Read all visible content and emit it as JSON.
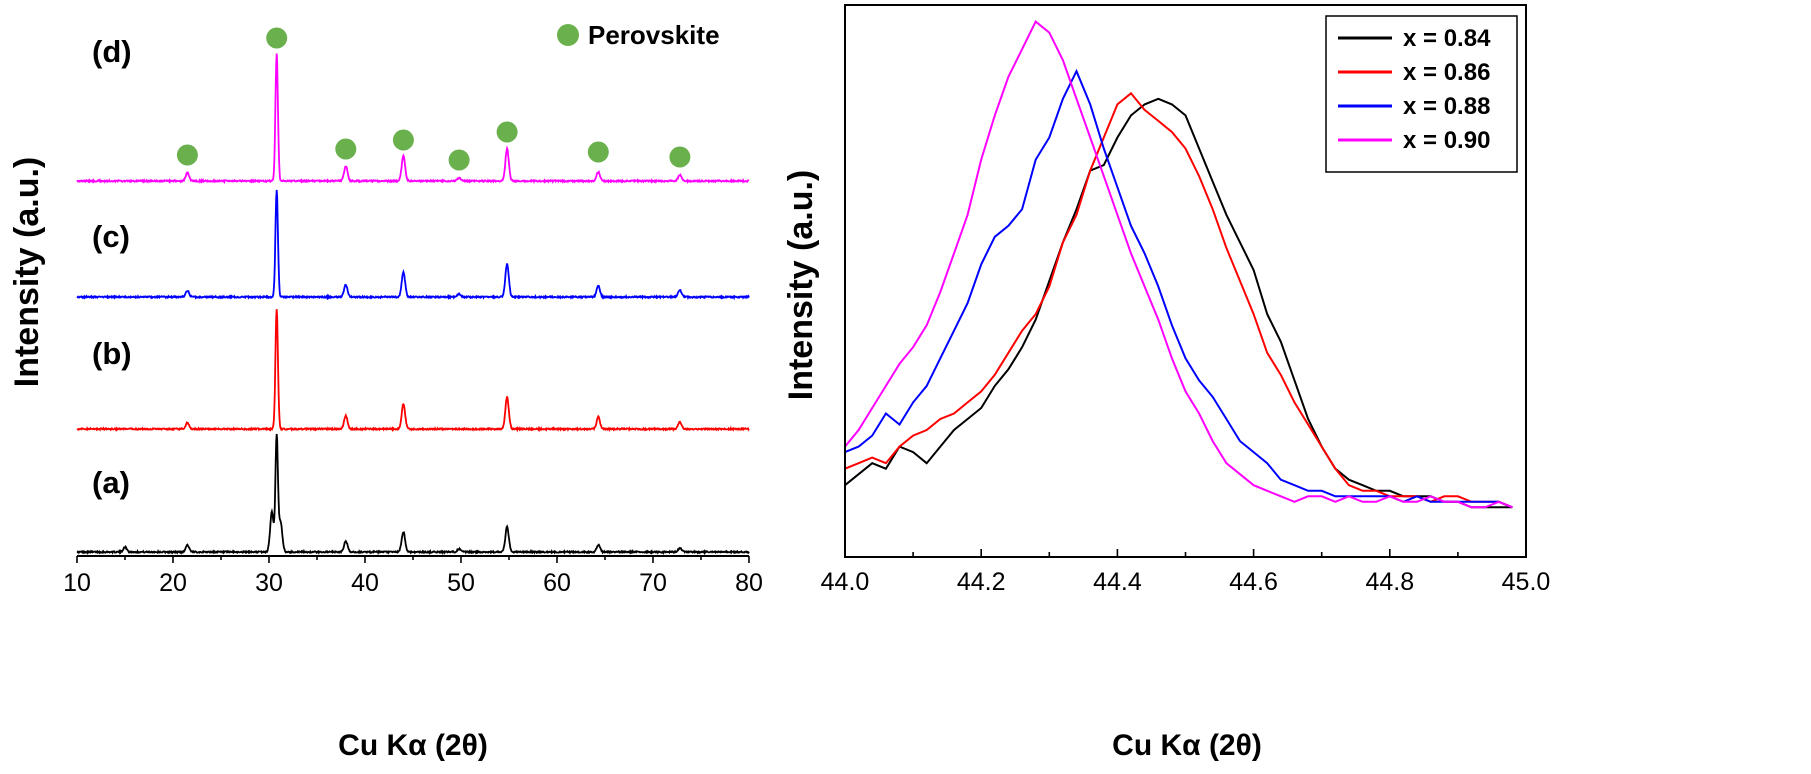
{
  "chart_data": [
    {
      "type": "line",
      "title": "",
      "xlabel": "Cu Kα (2θ)",
      "ylabel": "Intensity (a.u.)",
      "xlim": [
        10,
        80
      ],
      "xticks": [
        10,
        20,
        30,
        40,
        50,
        60,
        70,
        80
      ],
      "panel_labels": [
        "(a)",
        "(b)",
        "(c)",
        "(d)"
      ],
      "marker_legend": {
        "label": "Perovskite",
        "color": "#6ab04c"
      },
      "marker_peaks": [
        21.5,
        30.8,
        38.0,
        44.0,
        49.8,
        54.8,
        64.3,
        72.8
      ],
      "series": [
        {
          "name": "(a)",
          "color": "#000000",
          "peaks": [
            [
              15.0,
              5
            ],
            [
              21.5,
              7
            ],
            [
              30.3,
              40
            ],
            [
              30.8,
              115
            ],
            [
              31.2,
              30
            ],
            [
              38.0,
              11
            ],
            [
              44.0,
              20
            ],
            [
              49.8,
              3
            ],
            [
              54.8,
              25
            ],
            [
              64.3,
              7
            ],
            [
              72.8,
              4
            ]
          ]
        },
        {
          "name": "(b)",
          "color": "#ff0000",
          "peaks": [
            [
              21.5,
              6
            ],
            [
              30.8,
              120
            ],
            [
              38.0,
              13
            ],
            [
              44.0,
              25
            ],
            [
              54.8,
              32
            ],
            [
              64.3,
              12
            ],
            [
              72.8,
              7
            ]
          ]
        },
        {
          "name": "(c)",
          "color": "#0000ff",
          "peaks": [
            [
              21.5,
              6
            ],
            [
              30.8,
              107
            ],
            [
              38.0,
              12
            ],
            [
              44.0,
              25
            ],
            [
              49.8,
              3
            ],
            [
              54.8,
              33
            ],
            [
              64.3,
              11
            ],
            [
              72.8,
              7
            ]
          ]
        },
        {
          "name": "(d)",
          "color": "#ff00ff",
          "peaks": [
            [
              21.5,
              8
            ],
            [
              30.8,
              127
            ],
            [
              38.0,
              15
            ],
            [
              44.0,
              25
            ],
            [
              49.8,
              3
            ],
            [
              54.8,
              32
            ],
            [
              64.3,
              9
            ],
            [
              72.8,
              6
            ]
          ]
        }
      ]
    },
    {
      "type": "line",
      "title": "",
      "xlabel": "Cu Kα (2θ)",
      "ylabel": "Intensity (a.u.)",
      "xlim": [
        44.0,
        45.0
      ],
      "ylim": [
        0,
        1
      ],
      "xticks": [
        "44.0",
        "44.2",
        "44.4",
        "44.6",
        "44.8",
        "45.0"
      ],
      "series": [
        {
          "name": "x = 0.84",
          "color": "#000000",
          "x": [
            44.0,
            44.02,
            44.04,
            44.06,
            44.08,
            44.1,
            44.12,
            44.14,
            44.16,
            44.18,
            44.2,
            44.22,
            44.24,
            44.26,
            44.28,
            44.3,
            44.32,
            44.34,
            44.36,
            44.38,
            44.4,
            44.42,
            44.44,
            44.46,
            44.48,
            44.5,
            44.52,
            44.54,
            44.56,
            44.58,
            44.6,
            44.62,
            44.64,
            44.66,
            44.68,
            44.7,
            44.72,
            44.74,
            44.76,
            44.78,
            44.8,
            44.82,
            44.84,
            44.86,
            44.88,
            44.9,
            44.92,
            44.94,
            44.96,
            44.98
          ],
          "y": [
            0.13,
            0.15,
            0.17,
            0.16,
            0.2,
            0.19,
            0.17,
            0.2,
            0.23,
            0.25,
            0.27,
            0.31,
            0.34,
            0.38,
            0.43,
            0.5,
            0.57,
            0.63,
            0.7,
            0.71,
            0.76,
            0.8,
            0.82,
            0.83,
            0.82,
            0.8,
            0.74,
            0.68,
            0.62,
            0.57,
            0.52,
            0.44,
            0.39,
            0.32,
            0.25,
            0.2,
            0.16,
            0.14,
            0.13,
            0.12,
            0.12,
            0.11,
            0.11,
            0.11,
            0.1,
            0.1,
            0.09,
            0.09,
            0.09,
            0.09
          ]
        },
        {
          "name": "x = 0.86",
          "color": "#ff0000",
          "x": [
            44.0,
            44.02,
            44.04,
            44.06,
            44.08,
            44.1,
            44.12,
            44.14,
            44.16,
            44.18,
            44.2,
            44.22,
            44.24,
            44.26,
            44.28,
            44.3,
            44.32,
            44.34,
            44.36,
            44.38,
            44.4,
            44.42,
            44.44,
            44.46,
            44.48,
            44.5,
            44.52,
            44.54,
            44.56,
            44.58,
            44.6,
            44.62,
            44.64,
            44.66,
            44.68,
            44.7,
            44.72,
            44.74,
            44.76,
            44.78,
            44.8,
            44.82,
            44.84,
            44.86,
            44.88,
            44.9,
            44.92,
            44.94,
            44.96,
            44.98
          ],
          "y": [
            0.16,
            0.17,
            0.18,
            0.17,
            0.2,
            0.22,
            0.23,
            0.25,
            0.26,
            0.28,
            0.3,
            0.33,
            0.37,
            0.41,
            0.44,
            0.49,
            0.57,
            0.62,
            0.7,
            0.76,
            0.82,
            0.84,
            0.81,
            0.79,
            0.77,
            0.74,
            0.69,
            0.63,
            0.56,
            0.5,
            0.44,
            0.37,
            0.33,
            0.28,
            0.24,
            0.2,
            0.16,
            0.13,
            0.12,
            0.12,
            0.11,
            0.11,
            0.11,
            0.1,
            0.11,
            0.11,
            0.1,
            0.1,
            0.1,
            0.09
          ]
        },
        {
          "name": "x = 0.88",
          "color": "#0000ff",
          "x": [
            44.0,
            44.02,
            44.04,
            44.06,
            44.08,
            44.1,
            44.12,
            44.14,
            44.16,
            44.18,
            44.2,
            44.22,
            44.24,
            44.26,
            44.28,
            44.3,
            44.32,
            44.34,
            44.36,
            44.38,
            44.4,
            44.42,
            44.44,
            44.46,
            44.48,
            44.5,
            44.52,
            44.54,
            44.56,
            44.58,
            44.6,
            44.62,
            44.64,
            44.66,
            44.68,
            44.7,
            44.72,
            44.74,
            44.76,
            44.78,
            44.8,
            44.82,
            44.84,
            44.86,
            44.88,
            44.9,
            44.92,
            44.94,
            44.96,
            44.98
          ],
          "y": [
            0.19,
            0.2,
            0.22,
            0.26,
            0.24,
            0.28,
            0.31,
            0.36,
            0.41,
            0.46,
            0.53,
            0.58,
            0.6,
            0.63,
            0.72,
            0.76,
            0.83,
            0.88,
            0.82,
            0.74,
            0.67,
            0.6,
            0.55,
            0.49,
            0.42,
            0.36,
            0.32,
            0.29,
            0.25,
            0.21,
            0.19,
            0.17,
            0.14,
            0.13,
            0.12,
            0.12,
            0.11,
            0.11,
            0.11,
            0.11,
            0.11,
            0.1,
            0.11,
            0.1,
            0.1,
            0.1,
            0.1,
            0.1,
            0.1,
            0.09
          ]
        },
        {
          "name": "x = 0.90",
          "color": "#ff00ff",
          "x": [
            44.0,
            44.02,
            44.04,
            44.06,
            44.08,
            44.1,
            44.12,
            44.14,
            44.16,
            44.18,
            44.2,
            44.22,
            44.24,
            44.26,
            44.28,
            44.3,
            44.32,
            44.34,
            44.36,
            44.38,
            44.4,
            44.42,
            44.44,
            44.46,
            44.48,
            44.5,
            44.52,
            44.54,
            44.56,
            44.58,
            44.6,
            44.62,
            44.64,
            44.66,
            44.68,
            44.7,
            44.72,
            44.74,
            44.76,
            44.78,
            44.8,
            44.82,
            44.84,
            44.86,
            44.88,
            44.9,
            44.92,
            44.94,
            44.96,
            44.98
          ],
          "y": [
            0.2,
            0.23,
            0.27,
            0.31,
            0.35,
            0.38,
            0.42,
            0.48,
            0.55,
            0.62,
            0.72,
            0.8,
            0.87,
            0.92,
            0.97,
            0.95,
            0.9,
            0.83,
            0.76,
            0.69,
            0.62,
            0.55,
            0.49,
            0.43,
            0.36,
            0.3,
            0.26,
            0.21,
            0.17,
            0.15,
            0.13,
            0.12,
            0.11,
            0.1,
            0.11,
            0.11,
            0.1,
            0.11,
            0.1,
            0.1,
            0.11,
            0.1,
            0.1,
            0.11,
            0.1,
            0.1,
            0.09,
            0.09,
            0.1,
            0.09
          ]
        }
      ]
    }
  ]
}
